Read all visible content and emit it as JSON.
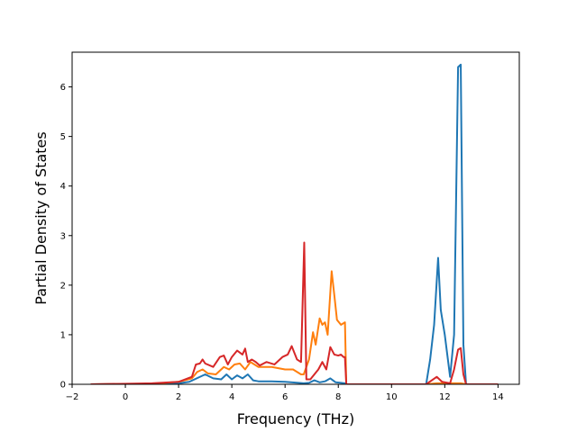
{
  "chart_data": {
    "type": "line",
    "title": "",
    "xlabel": "Frequency (THz)",
    "ylabel": "Partial Density of States",
    "xlim": [
      -2,
      14.8
    ],
    "ylim": [
      0,
      6.7
    ],
    "xticks": [
      "−2",
      "0",
      "2",
      "4",
      "6",
      "8",
      "10",
      "12",
      "14"
    ],
    "xtick_values": [
      -2,
      0,
      2,
      4,
      6,
      8,
      10,
      12,
      14
    ],
    "yticks": [
      "0",
      "1",
      "2",
      "3",
      "4",
      "5",
      "6"
    ],
    "ytick_values": [
      0,
      1,
      2,
      3,
      4,
      5,
      6
    ],
    "grid": false,
    "legend": "none",
    "series": [
      {
        "color": "#1f77b4",
        "x": [
          -1.3,
          1.0,
          2.0,
          2.4,
          2.6,
          2.8,
          3.0,
          3.3,
          3.6,
          3.8,
          4.0,
          4.2,
          4.4,
          4.6,
          4.8,
          5.0,
          5.5,
          6.0,
          6.5,
          6.7,
          6.9,
          7.1,
          7.3,
          7.5,
          7.7,
          7.9,
          8.1,
          8.25,
          8.3,
          11.3,
          11.45,
          11.6,
          11.75,
          11.85,
          12.0,
          12.2,
          12.35,
          12.5,
          12.6,
          12.7,
          12.8,
          14.0
        ],
        "y": [
          0,
          0.01,
          0.02,
          0.05,
          0.1,
          0.15,
          0.2,
          0.12,
          0.1,
          0.2,
          0.1,
          0.18,
          0.12,
          0.2,
          0.08,
          0.06,
          0.06,
          0.05,
          0.03,
          0.02,
          0.03,
          0.08,
          0.04,
          0.06,
          0.12,
          0.04,
          0.03,
          0.02,
          0,
          0,
          0.5,
          1.2,
          2.55,
          1.5,
          1.0,
          0.15,
          1.0,
          6.4,
          6.45,
          0.8,
          0,
          0
        ]
      },
      {
        "color": "#ff7f0e",
        "x": [
          -1.3,
          1.0,
          2.0,
          2.5,
          2.7,
          2.9,
          3.1,
          3.4,
          3.7,
          3.9,
          4.1,
          4.3,
          4.5,
          4.7,
          5.0,
          5.5,
          6.0,
          6.3,
          6.6,
          6.7,
          6.9,
          7.05,
          7.15,
          7.3,
          7.4,
          7.5,
          7.6,
          7.75,
          7.85,
          7.95,
          8.1,
          8.25,
          8.3,
          11.3,
          11.7,
          12.2,
          12.6,
          12.8,
          14.0
        ],
        "y": [
          0,
          0.01,
          0.05,
          0.12,
          0.25,
          0.3,
          0.22,
          0.2,
          0.35,
          0.3,
          0.4,
          0.42,
          0.3,
          0.45,
          0.35,
          0.35,
          0.3,
          0.3,
          0.2,
          0.2,
          0.5,
          1.05,
          0.8,
          1.33,
          1.2,
          1.25,
          1.0,
          2.28,
          1.8,
          1.3,
          1.2,
          1.25,
          0,
          0,
          0.02,
          0.02,
          0.02,
          0,
          0
        ]
      },
      {
        "color": "#d62728",
        "x": [
          -1.3,
          1.0,
          2.0,
          2.5,
          2.65,
          2.8,
          2.9,
          3.0,
          3.3,
          3.55,
          3.7,
          3.85,
          4.0,
          4.2,
          4.4,
          4.5,
          4.6,
          4.75,
          4.9,
          5.05,
          5.3,
          5.6,
          5.9,
          6.1,
          6.25,
          6.45,
          6.6,
          6.72,
          6.8,
          6.95,
          7.1,
          7.25,
          7.4,
          7.55,
          7.7,
          7.85,
          8.0,
          8.1,
          8.2,
          8.25,
          8.3,
          11.3,
          11.7,
          11.9,
          12.2,
          12.35,
          12.5,
          12.6,
          12.7,
          12.8,
          14.0
        ],
        "y": [
          0,
          0.02,
          0.05,
          0.15,
          0.4,
          0.42,
          0.5,
          0.42,
          0.35,
          0.55,
          0.58,
          0.4,
          0.55,
          0.68,
          0.6,
          0.72,
          0.45,
          0.5,
          0.45,
          0.38,
          0.45,
          0.4,
          0.55,
          0.6,
          0.77,
          0.5,
          0.45,
          2.86,
          0.1,
          0.1,
          0.2,
          0.3,
          0.45,
          0.3,
          0.75,
          0.6,
          0.58,
          0.6,
          0.55,
          0.55,
          0,
          0,
          0.15,
          0.05,
          0.02,
          0.3,
          0.7,
          0.73,
          0.2,
          0,
          0
        ]
      }
    ]
  }
}
